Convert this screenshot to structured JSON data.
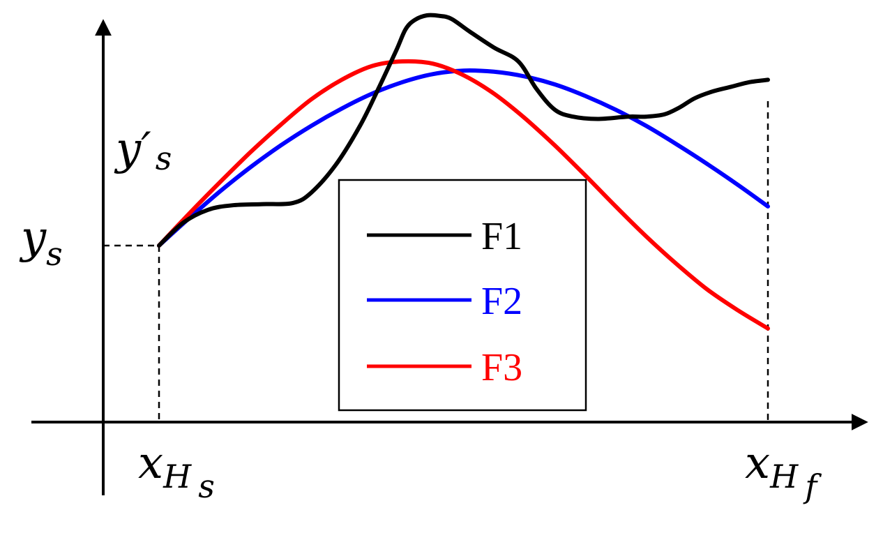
{
  "chart_data": {
    "type": "line",
    "x_labels": {
      "start": {
        "main": "x",
        "sub": "H",
        "subsub": "s"
      },
      "end": {
        "main": "x",
        "sub": "H",
        "subsub": "f"
      }
    },
    "y_labels": {
      "start": {
        "main": "y",
        "sub": "s"
      },
      "alt": {
        "main": "y′",
        "sub": "s"
      }
    },
    "xlim": [
      -0.09,
      1.16
    ],
    "ylim": [
      -0.49,
      1.0
    ],
    "legend_position": "center",
    "series": [
      {
        "name": "F1",
        "color": "#000000",
        "x": [
          0.0,
          0.04,
          0.08,
          0.12,
          0.17,
          0.22,
          0.25,
          0.29,
          0.33,
          0.36,
          0.39,
          0.405,
          0.42,
          0.44,
          0.46,
          0.48,
          0.51,
          0.55,
          0.59,
          0.62,
          0.65,
          0.68,
          0.72,
          0.77,
          0.8,
          0.83,
          0.855,
          0.88,
          0.91,
          0.94,
          0.97,
          1.0
        ],
        "y": [
          0.0,
          0.1,
          0.155,
          0.175,
          0.18,
          0.185,
          0.23,
          0.35,
          0.52,
          0.68,
          0.85,
          0.94,
          0.98,
          1.0,
          0.998,
          0.985,
          0.93,
          0.86,
          0.8,
          0.68,
          0.59,
          0.56,
          0.55,
          0.56,
          0.56,
          0.57,
          0.6,
          0.64,
          0.67,
          0.69,
          0.71,
          0.72
        ]
      },
      {
        "name": "F2",
        "color": "#0000ff",
        "x": [
          0.0,
          0.05,
          0.1,
          0.15,
          0.2,
          0.25,
          0.3,
          0.35,
          0.4,
          0.45,
          0.5,
          0.55,
          0.6,
          0.65,
          0.7,
          0.75,
          0.8,
          0.85,
          0.9,
          0.95,
          1.0
        ],
        "y": [
          0.0,
          0.12,
          0.235,
          0.34,
          0.435,
          0.52,
          0.595,
          0.66,
          0.71,
          0.745,
          0.76,
          0.755,
          0.735,
          0.7,
          0.65,
          0.59,
          0.52,
          0.44,
          0.355,
          0.265,
          0.17
        ]
      },
      {
        "name": "F3",
        "color": "#ff0000",
        "x": [
          0.0,
          0.05,
          0.1,
          0.15,
          0.2,
          0.25,
          0.3,
          0.35,
          0.4,
          0.45,
          0.5,
          0.55,
          0.6,
          0.65,
          0.7,
          0.75,
          0.8,
          0.85,
          0.9,
          0.95,
          1.0
        ],
        "y": [
          0.0,
          0.14,
          0.275,
          0.405,
          0.525,
          0.635,
          0.72,
          0.78,
          0.8,
          0.79,
          0.74,
          0.66,
          0.555,
          0.435,
          0.305,
          0.17,
          0.04,
          -0.08,
          -0.19,
          -0.28,
          -0.36
        ]
      }
    ]
  }
}
